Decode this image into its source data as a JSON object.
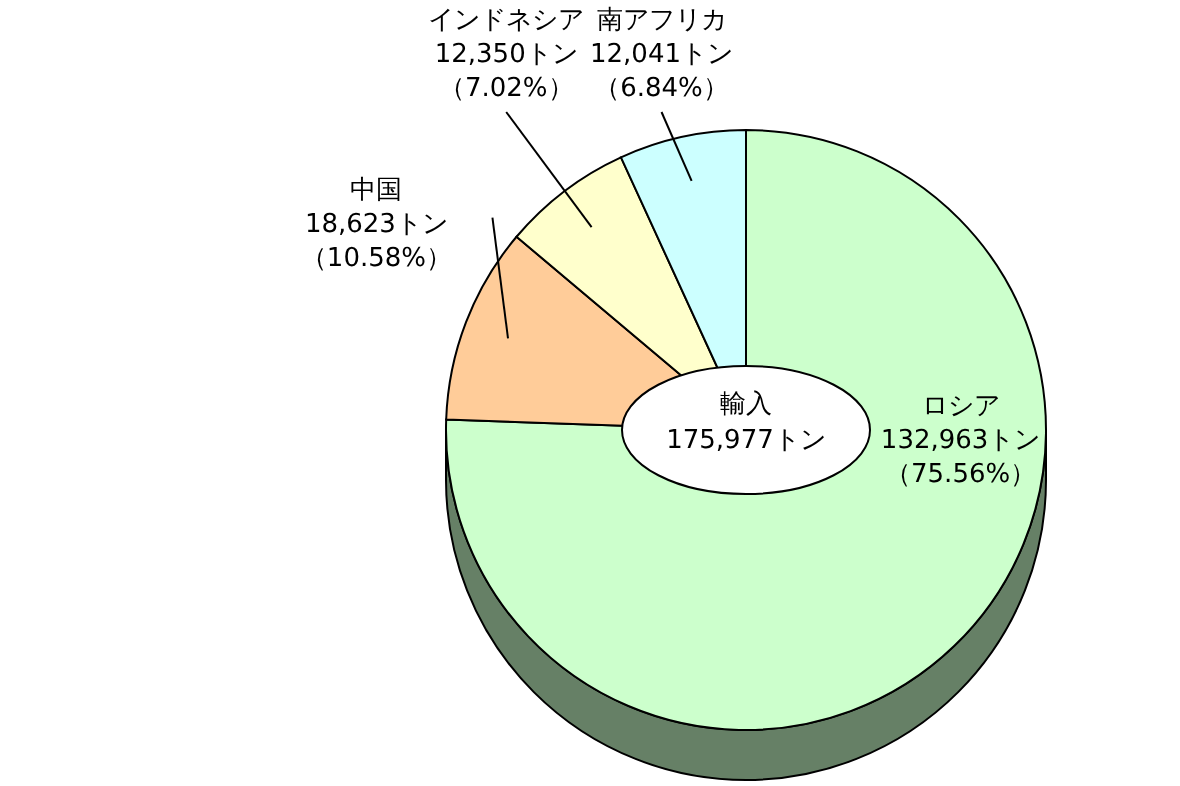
{
  "chart_data": {
    "type": "pie",
    "categories": [
      "ロシア",
      "中国",
      "インドネシア",
      "南アフリカ"
    ],
    "values": [
      132963,
      18623,
      12350,
      12041
    ],
    "colors": [
      "#ccffcc",
      "#ffcc99",
      "#ffffcc",
      "#ccffff"
    ],
    "value_labels": [
      "132,963トン（75.56%）",
      "18,623トン（10.58%）",
      "12,350トン（7.02%）",
      "12,041トン（6.84%）"
    ],
    "annotations": [
      "輸入",
      "175,977トン"
    ]
  }
}
